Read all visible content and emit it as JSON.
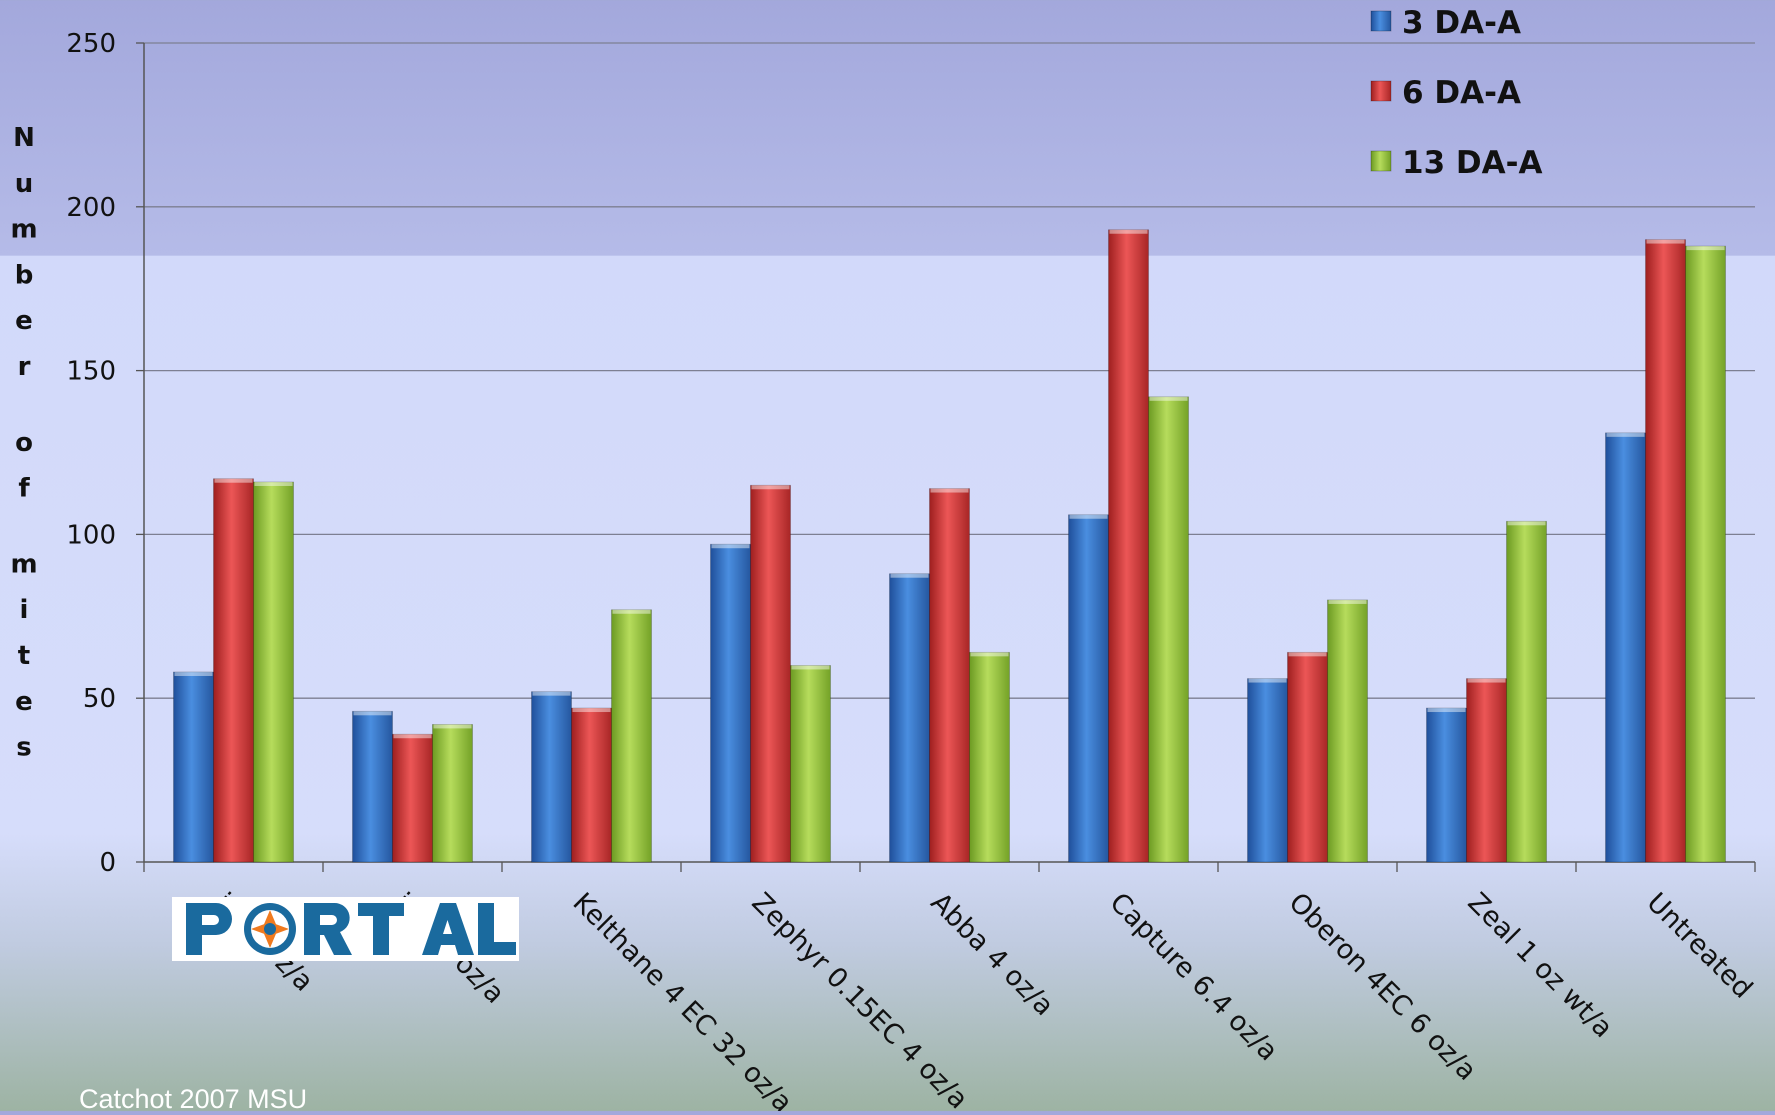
{
  "chart_data": {
    "type": "bar",
    "title": "",
    "xlabel": "",
    "ylabel": "Number of mites",
    "ylim": [
      0,
      250
    ],
    "yticks": [
      0,
      50,
      100,
      150,
      200,
      250
    ],
    "grid": true,
    "legend_position": "top-right",
    "categories": [
      "ite 5 oz/a",
      "ite 16 oz/a",
      "Kelthane 4 EC 32 oz/a",
      "Zephyr 0.15EC 4 oz/a",
      "Abba 4 oz/a",
      "Capture 6.4 oz/a",
      "Oberon 4EC 6 oz/a",
      "Zeal 1 oz wt/a",
      "Untreated"
    ],
    "series": [
      {
        "name": "3 DA-A",
        "color": "#2f6fc4",
        "values": [
          58,
          46,
          52,
          97,
          88,
          106,
          56,
          47,
          131
        ]
      },
      {
        "name": "6 DA-A",
        "color": "#d03a3a",
        "values": [
          117,
          39,
          47,
          115,
          114,
          193,
          64,
          56,
          190
        ]
      },
      {
        "name": "13 DA-A",
        "color": "#96c23e",
        "values": [
          116,
          42,
          77,
          60,
          64,
          142,
          80,
          104,
          188
        ]
      }
    ]
  },
  "logo_text": "PORTAL",
  "credit": "Catchot 2007 MSU"
}
